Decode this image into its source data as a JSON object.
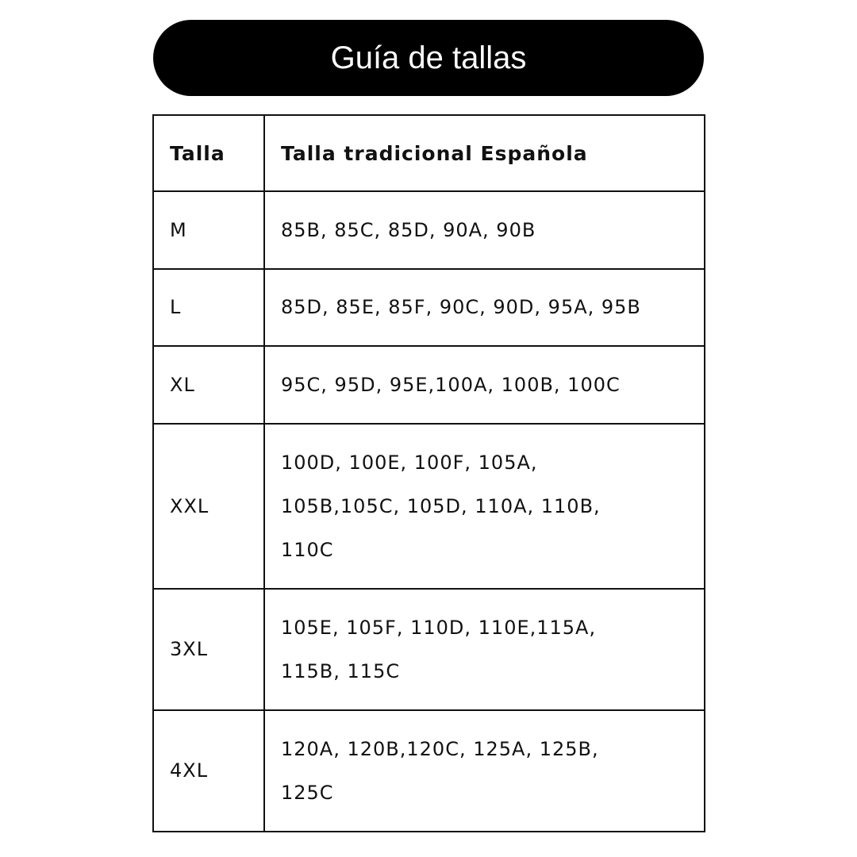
{
  "title": "Guía de tallas",
  "headers": [
    "Talla",
    "Talla tradicional Española"
  ],
  "rows": [
    {
      "size": "M",
      "eq": "85B, 85C, 85D, 90A, 90B"
    },
    {
      "size": "L",
      "eq": "85D, 85E, 85F, 90C, 90D, 95A, 95B"
    },
    {
      "size": "XL",
      "eq": "95C, 95D, 95E,100A, 100B, 100C"
    },
    {
      "size": "XXL",
      "eq": "100D, 100E, 100F, 105A, 105B,105C, 105D, 110A, 110B, 110C"
    },
    {
      "size": "3XL",
      "eq": "105E, 105F, 110D, 110E,115A, 115B, 115C"
    },
    {
      "size": "4XL",
      "eq": "120A, 120B,120C, 125A, 125B, 125C"
    }
  ]
}
